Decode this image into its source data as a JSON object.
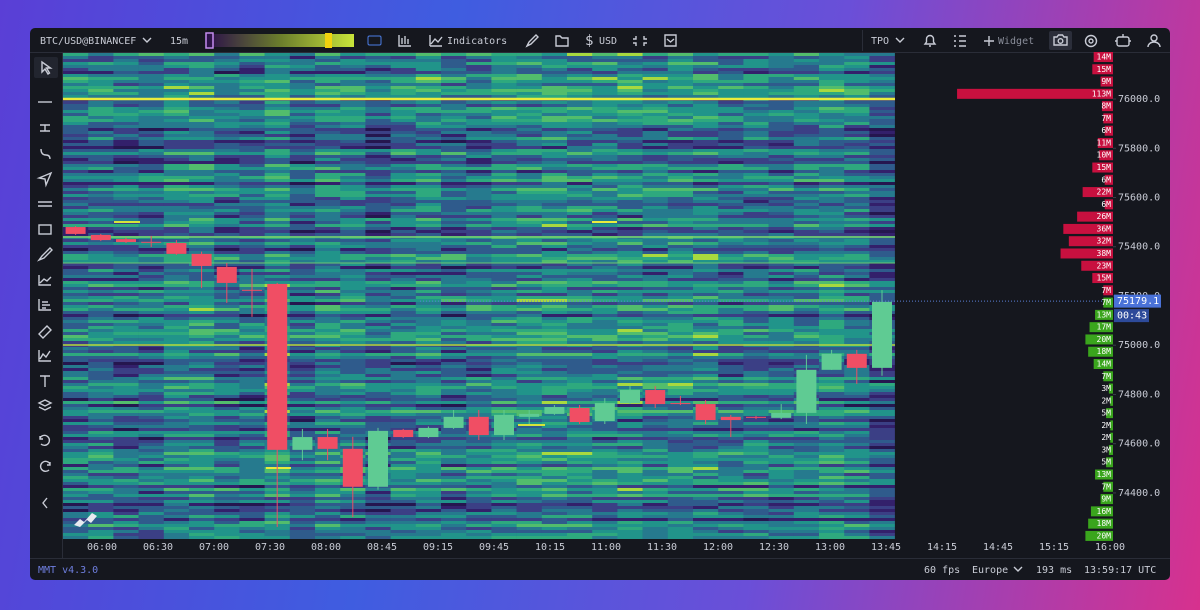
{
  "toolbar": {
    "symbol": "BTC/USD@BINANCEF",
    "interval": "15m",
    "indicators": "Indicators",
    "currency": "USD",
    "profile": "TPO",
    "widget": "Widget"
  },
  "chart_data": {
    "type": "candlestick",
    "xticks": [
      "06:00",
      "06:30",
      "07:00",
      "07:30",
      "08:00",
      "08:45",
      "09:15",
      "09:45",
      "10:15",
      "11:00",
      "11:30",
      "12:00",
      "12:30",
      "13:00",
      "13:45",
      "14:15",
      "14:45",
      "15:15",
      "16:00"
    ],
    "open": [
      75480,
      75448,
      75431,
      75420,
      75415,
      75371,
      75318,
      75225,
      75249,
      74575,
      74627,
      74579,
      74425,
      74656,
      74627,
      74664,
      74709,
      74635,
      74709,
      74721,
      74745,
      74692,
      74765,
      74818,
      74765,
      74761,
      74709,
      74709,
      74705,
      74725,
      74900,
      74965,
      74908
    ],
    "high": [
      75484,
      75452,
      75436,
      75444,
      75427,
      75380,
      75334,
      75310,
      75253,
      74660,
      74660,
      74628,
      74664,
      74660,
      74670,
      74737,
      74737,
      74737,
      74737,
      74757,
      74757,
      74785,
      74834,
      74834,
      74794,
      74777,
      74717,
      74713,
      74761,
      74961,
      74981,
      74981,
      75224
    ],
    "low": [
      75448,
      75423,
      75415,
      75399,
      75367,
      75232,
      75172,
      75115,
      74262,
      74533,
      74533,
      74302,
      74413,
      74623,
      74623,
      74660,
      74615,
      74615,
      74680,
      74717,
      74680,
      74680,
      74761,
      74745,
      74757,
      74680,
      74627,
      74700,
      74700,
      74680,
      74900,
      74843,
      74876
    ],
    "close": [
      75452,
      75427,
      75419,
      75416,
      75371,
      75322,
      75253,
      75221,
      74575,
      74627,
      74579,
      74425,
      74652,
      74627,
      74664,
      74709,
      74635,
      74717,
      74721,
      74749,
      74688,
      74765,
      74818,
      74761,
      74761,
      74696,
      74696,
      74705,
      74725,
      74900,
      74965,
      74908,
      75176
    ],
    "up_color": "#5fcb93",
    "down_color": "#f04e64",
    "ylim": [
      74221,
      76191
    ],
    "yticks": [
      {
        "value": 76000,
        "label": "76000.0"
      },
      {
        "value": 75800,
        "label": "75800.0"
      },
      {
        "value": 75600,
        "label": "75600.0"
      },
      {
        "value": 75400,
        "label": "75400.0"
      },
      {
        "value": 75200,
        "label": "75200.0"
      },
      {
        "value": 75000,
        "label": "75000.0"
      },
      {
        "value": 74800,
        "label": "74800.0"
      },
      {
        "value": 74600,
        "label": "74600.0"
      },
      {
        "value": 74400,
        "label": "74400.0"
      }
    ],
    "last_price": 75179.1,
    "countdown": "00:43"
  },
  "orderbook": {
    "asks": {
      "color": "#c8103f",
      "values": [
        14,
        15,
        9,
        113,
        8,
        7,
        6,
        11,
        10,
        15,
        6,
        22,
        6,
        26,
        36,
        32,
        38,
        23,
        15,
        7
      ],
      "value_labels": [
        "14M",
        "15M",
        "9M",
        "113M",
        "8M",
        "7M",
        "6M",
        "11M",
        "10M",
        "15M",
        "6M",
        "22M",
        "6M",
        "26M",
        "36M",
        "32M",
        "38M",
        "23M",
        "15M",
        "7M"
      ]
    },
    "bids": {
      "color": "#3aa51d",
      "values": [
        7,
        13,
        17,
        20,
        18,
        14,
        7,
        3,
        2,
        5,
        2,
        2,
        3,
        5,
        13,
        7,
        9,
        16,
        18,
        20
      ],
      "value_labels": [
        "7M",
        "13M",
        "17M",
        "20M",
        "18M",
        "14M",
        "7M",
        "3M",
        "2M",
        "5M",
        "2M",
        "2M",
        "3M",
        "5M",
        "13M",
        "7M",
        "9M",
        "16M",
        "18M",
        "20M"
      ]
    }
  },
  "status": {
    "version": "MMT v4.3.0",
    "fps": "60 fps",
    "region": "Europe",
    "latency": "193 ms",
    "clock": "13:59:17 UTC"
  }
}
